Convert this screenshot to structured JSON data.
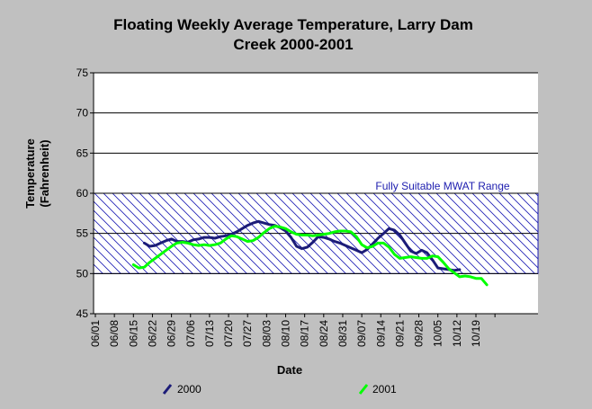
{
  "chart_data": {
    "type": "line",
    "title_line1": "Floating Weekly Average Temperature, Larry Dam",
    "title_line2": "Creek 2000-2001",
    "xlabel": "Date",
    "ylabel_line1": "Temperature",
    "ylabel_line2": "(Fahrenheit)",
    "ylim": [
      45,
      75
    ],
    "yticks": [
      "45",
      "50",
      "55",
      "60",
      "65",
      "70",
      "75"
    ],
    "x_dates": [
      "06/01",
      "06/08",
      "06/15",
      "06/22",
      "06/29",
      "07/06",
      "07/13",
      "07/20",
      "07/27",
      "08/03",
      "08/10",
      "08/17",
      "08/24",
      "08/31",
      "09/07",
      "09/14",
      "09/21",
      "09/28",
      "10/05",
      "10/12",
      "10/19"
    ],
    "grid": true,
    "legend_placement": "bottom",
    "band": {
      "low": 50,
      "high": 60,
      "label": "Fully Suitable MWAT Range",
      "color": "#1c1cb4"
    },
    "series": [
      {
        "name": "2000",
        "color": "#1c1c78",
        "x": [
          "06/19",
          "06/21",
          "06/23",
          "06/25",
          "06/27",
          "06/29",
          "07/01",
          "07/03",
          "07/05",
          "07/07",
          "07/09",
          "07/11",
          "07/13",
          "07/15",
          "07/17",
          "07/19",
          "07/21",
          "07/23",
          "07/25",
          "07/27",
          "07/29",
          "07/31",
          "08/02",
          "08/04",
          "08/06",
          "08/08",
          "08/10",
          "08/12",
          "08/14",
          "08/16",
          "08/18",
          "08/20",
          "08/22",
          "08/24",
          "08/26",
          "08/28",
          "08/30",
          "09/01",
          "09/03",
          "09/05",
          "09/07",
          "09/09",
          "09/11",
          "09/13",
          "09/15",
          "09/17",
          "09/19",
          "09/21",
          "09/23",
          "09/25",
          "09/27",
          "09/29",
          "10/01",
          "10/03",
          "10/05",
          "10/07",
          "10/09",
          "10/11",
          "10/13"
        ],
        "values": [
          53.8,
          53.4,
          53.5,
          53.8,
          54.1,
          54.3,
          54.0,
          54.0,
          53.9,
          54.2,
          54.3,
          54.5,
          54.5,
          54.4,
          54.6,
          54.7,
          54.9,
          55.2,
          55.6,
          56.0,
          56.3,
          56.5,
          56.3,
          56.1,
          56.0,
          55.7,
          55.3,
          54.5,
          53.4,
          53.1,
          53.3,
          53.9,
          54.6,
          54.5,
          54.3,
          54.0,
          53.8,
          53.5,
          53.2,
          52.9,
          52.6,
          53.0,
          53.7,
          54.4,
          55.0,
          55.6,
          55.4,
          54.8,
          53.8,
          52.8,
          52.5,
          52.9,
          52.6,
          51.7,
          50.7,
          50.6,
          50.5,
          50.4,
          50.5
        ]
      },
      {
        "name": "2001",
        "color": "#00ff00",
        "x": [
          "06/15",
          "06/17",
          "06/19",
          "06/21",
          "06/23",
          "06/25",
          "06/27",
          "06/29",
          "07/01",
          "07/03",
          "07/05",
          "07/07",
          "07/09",
          "07/11",
          "07/13",
          "07/15",
          "07/17",
          "07/19",
          "07/21",
          "07/23",
          "07/25",
          "07/27",
          "07/29",
          "07/31",
          "08/02",
          "08/04",
          "08/06",
          "08/08",
          "08/10",
          "08/12",
          "08/14",
          "08/16",
          "08/18",
          "08/20",
          "08/22",
          "08/24",
          "08/26",
          "08/28",
          "08/30",
          "09/01",
          "09/03",
          "09/05",
          "09/07",
          "09/09",
          "09/11",
          "09/13",
          "09/15",
          "09/17",
          "09/19",
          "09/21",
          "09/23",
          "09/25",
          "09/27",
          "09/29",
          "10/01",
          "10/03",
          "10/05",
          "10/07",
          "10/09",
          "10/11",
          "10/13",
          "10/15",
          "10/17",
          "10/19",
          "10/21",
          "10/23"
        ],
        "values": [
          51.1,
          50.7,
          50.8,
          51.4,
          51.9,
          52.4,
          52.9,
          53.4,
          53.8,
          53.9,
          53.8,
          53.6,
          53.5,
          53.6,
          53.5,
          53.6,
          53.8,
          54.3,
          54.7,
          54.6,
          54.3,
          54.0,
          54.1,
          54.5,
          55.1,
          55.6,
          55.9,
          55.8,
          55.6,
          55.2,
          54.9,
          54.8,
          54.8,
          54.7,
          54.8,
          54.9,
          55.0,
          55.2,
          55.3,
          55.3,
          55.2,
          54.6,
          53.6,
          53.2,
          53.4,
          53.8,
          53.8,
          53.3,
          52.4,
          51.9,
          52.0,
          52.1,
          52.0,
          51.9,
          51.9,
          52.2,
          52.1,
          51.4,
          50.6,
          50.1,
          49.6,
          49.7,
          49.6,
          49.4,
          49.4,
          48.6
        ]
      }
    ]
  }
}
